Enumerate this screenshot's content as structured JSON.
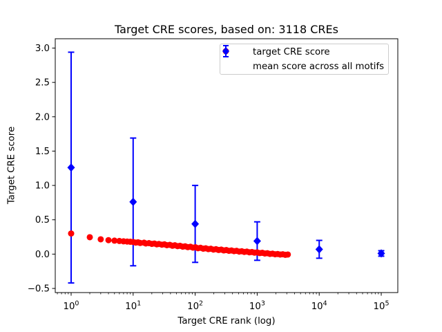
{
  "chart_data": {
    "type": "scatter",
    "title": "Target CRE scores, based on: 3118 CREs",
    "xlabel": "Target CRE rank (log)",
    "ylabel": "Target CRE score",
    "x_scale": "log",
    "grid": false,
    "background": "#ffffff",
    "axis_color": "#000000",
    "legend_border_color": "#cccccc",
    "legend_position": "upper center-right inside axes",
    "xlim_log10": [
      -0.256,
      5.267
    ],
    "ylim": [
      -0.56,
      3.136
    ],
    "x_ticks": [
      {
        "log10": 0,
        "label": "10^0"
      },
      {
        "log10": 1,
        "label": "10^1"
      },
      {
        "log10": 2,
        "label": "10^2"
      },
      {
        "log10": 3,
        "label": "10^3"
      },
      {
        "log10": 4,
        "label": "10^4"
      },
      {
        "log10": 5,
        "label": "10^5"
      }
    ],
    "y_ticks": [
      {
        "v": -0.5,
        "label": "−0.5"
      },
      {
        "v": 0.0,
        "label": "0.0"
      },
      {
        "v": 0.5,
        "label": "0.5"
      },
      {
        "v": 1.0,
        "label": "1.0"
      },
      {
        "v": 1.5,
        "label": "1.5"
      },
      {
        "v": 2.0,
        "label": "2.0"
      },
      {
        "v": 2.5,
        "label": "2.5"
      },
      {
        "v": 3.0,
        "label": "3.0"
      }
    ],
    "series": [
      {
        "name": "target CRE score",
        "type": "scatter",
        "marker": "circle",
        "color": "#ff0000",
        "points": [
          [
            1,
            0.3
          ],
          [
            2,
            0.246
          ],
          [
            3,
            0.216
          ],
          [
            4,
            0.203
          ],
          [
            5,
            0.196
          ],
          [
            6,
            0.191
          ],
          [
            7,
            0.186
          ],
          [
            8,
            0.183
          ],
          [
            9,
            0.18
          ],
          [
            10,
            0.177
          ],
          [
            11,
            0.168
          ],
          [
            12,
            0.172
          ],
          [
            13,
            0.162
          ],
          [
            15,
            0.166
          ],
          [
            16,
            0.155
          ],
          [
            18,
            0.16
          ],
          [
            20,
            0.149
          ],
          [
            22,
            0.154
          ],
          [
            24,
            0.143
          ],
          [
            26,
            0.148
          ],
          [
            29,
            0.138
          ],
          [
            32,
            0.142
          ],
          [
            35,
            0.13
          ],
          [
            39,
            0.135
          ],
          [
            43,
            0.122
          ],
          [
            47,
            0.128
          ],
          [
            52,
            0.116
          ],
          [
            57,
            0.121
          ],
          [
            63,
            0.109
          ],
          [
            69,
            0.114
          ],
          [
            76,
            0.102
          ],
          [
            84,
            0.107
          ],
          [
            92,
            0.095
          ],
          [
            101,
            0.1
          ],
          [
            111,
            0.086
          ],
          [
            122,
            0.092
          ],
          [
            135,
            0.079
          ],
          [
            148,
            0.085
          ],
          [
            163,
            0.073
          ],
          [
            179,
            0.078
          ],
          [
            197,
            0.066
          ],
          [
            217,
            0.072
          ],
          [
            239,
            0.06
          ],
          [
            263,
            0.066
          ],
          [
            289,
            0.054
          ],
          [
            318,
            0.059
          ],
          [
            350,
            0.048
          ],
          [
            385,
            0.053
          ],
          [
            423,
            0.043
          ],
          [
            465,
            0.048
          ],
          [
            512,
            0.037
          ],
          [
            563,
            0.042
          ],
          [
            619,
            0.032
          ],
          [
            681,
            0.037
          ],
          [
            749,
            0.026
          ],
          [
            824,
            0.031
          ],
          [
            906,
            0.021
          ],
          [
            997,
            0.025
          ],
          [
            1097,
            0.015
          ],
          [
            1206,
            0.019
          ],
          [
            1327,
            0.009
          ],
          [
            1460,
            0.013
          ],
          [
            1606,
            0.003
          ],
          [
            1766,
            0.007
          ],
          [
            1943,
            -0.002
          ],
          [
            2137,
            0.002
          ],
          [
            2351,
            -0.006
          ],
          [
            2586,
            -0.002
          ],
          [
            2845,
            -0.01
          ],
          [
            3118,
            -0.006
          ]
        ]
      },
      {
        "name": "mean score across all motifs",
        "type": "errorbar",
        "marker": "diamond",
        "color": "#0000ff",
        "points": [
          {
            "rank": 1,
            "mean": 1.26,
            "err": 1.68
          },
          {
            "rank": 10,
            "mean": 0.76,
            "err": 0.93
          },
          {
            "rank": 100,
            "mean": 0.44,
            "err": 0.56
          },
          {
            "rank": 1000,
            "mean": 0.19,
            "err": 0.28
          },
          {
            "rank": 10000,
            "mean": 0.07,
            "err": 0.13
          },
          {
            "rank": 100000,
            "mean": 0.01,
            "err": 0.04
          }
        ]
      }
    ]
  }
}
